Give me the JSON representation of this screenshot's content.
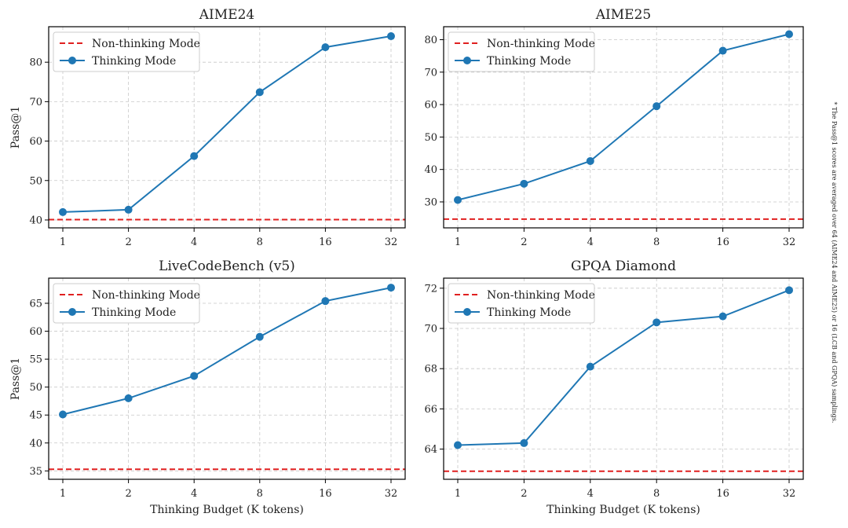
{
  "figure": {
    "note": "* The Pass@1 scores are averaged over 64 (AIME24 and AIME25) or 16 (LCB and GPQA) samplings."
  },
  "chart_data": [
    {
      "type": "line",
      "title": "AIME24",
      "xlabel": "",
      "ylabel": "Pass@1",
      "x": [
        "1",
        "2",
        "4",
        "8",
        "16",
        "32"
      ],
      "ylim": [
        38,
        89
      ],
      "yticks": [
        40,
        50,
        60,
        70,
        80
      ],
      "grid": true,
      "legend": "top-left",
      "series": [
        {
          "name": "Non-thinking Mode",
          "style": "dashed-hline",
          "color": "#e02020",
          "value": 40.1
        },
        {
          "name": "Thinking Mode",
          "style": "line-marker",
          "color": "#1f77b4",
          "values": [
            42.0,
            42.6,
            56.2,
            72.4,
            83.8,
            86.6
          ]
        }
      ]
    },
    {
      "type": "line",
      "title": "AIME25",
      "xlabel": "",
      "ylabel": "",
      "x": [
        "1",
        "2",
        "4",
        "8",
        "16",
        "32"
      ],
      "ylim": [
        22,
        84
      ],
      "yticks": [
        30,
        40,
        50,
        60,
        70,
        80
      ],
      "grid": true,
      "legend": "top-left",
      "series": [
        {
          "name": "Non-thinking Mode",
          "style": "dashed-hline",
          "color": "#e02020",
          "value": 24.7
        },
        {
          "name": "Thinking Mode",
          "style": "line-marker",
          "color": "#1f77b4",
          "values": [
            30.6,
            35.6,
            42.6,
            59.5,
            76.6,
            81.7
          ]
        }
      ]
    },
    {
      "type": "line",
      "title": "LiveCodeBench (v5)",
      "xlabel": "Thinking Budget (K tokens)",
      "ylabel": "Pass@1",
      "x": [
        "1",
        "2",
        "4",
        "8",
        "16",
        "32"
      ],
      "ylim": [
        33.5,
        69.5
      ],
      "yticks": [
        35,
        40,
        45,
        50,
        55,
        60,
        65
      ],
      "grid": true,
      "legend": "top-left",
      "series": [
        {
          "name": "Non-thinking Mode",
          "style": "dashed-hline",
          "color": "#e02020",
          "value": 35.3
        },
        {
          "name": "Thinking Mode",
          "style": "line-marker",
          "color": "#1f77b4",
          "values": [
            45.1,
            48.0,
            52.0,
            59.0,
            65.4,
            67.8
          ]
        }
      ]
    },
    {
      "type": "line",
      "title": "GPQA Diamond",
      "xlabel": "Thinking Budget (K tokens)",
      "ylabel": "",
      "x": [
        "1",
        "2",
        "4",
        "8",
        "16",
        "32"
      ],
      "ylim": [
        62.5,
        72.5
      ],
      "yticks": [
        64,
        66,
        68,
        70,
        72
      ],
      "grid": true,
      "legend": "top-left",
      "series": [
        {
          "name": "Non-thinking Mode",
          "style": "dashed-hline",
          "color": "#e02020",
          "value": 62.9
        },
        {
          "name": "Thinking Mode",
          "style": "line-marker",
          "color": "#1f77b4",
          "values": [
            64.2,
            64.3,
            68.1,
            70.3,
            70.6,
            71.9
          ]
        }
      ]
    }
  ]
}
